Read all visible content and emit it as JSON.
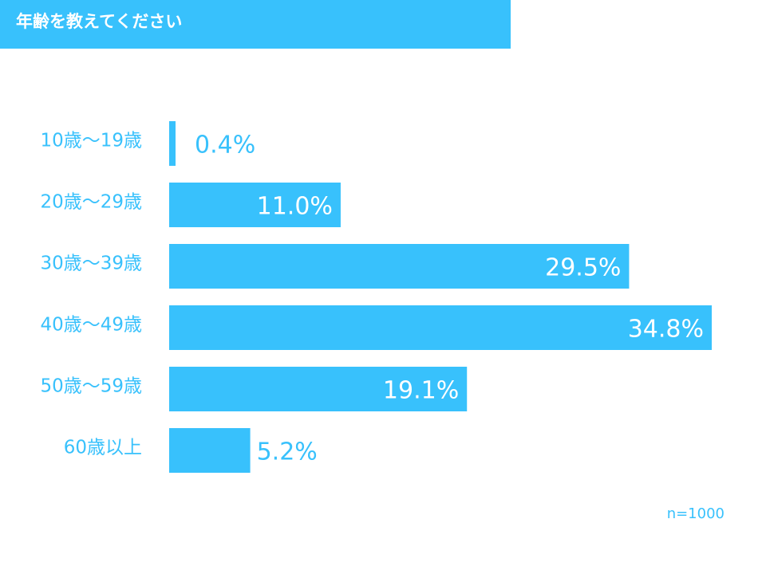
{
  "title": "年齢を教えてください",
  "note": "n=1000",
  "colors": {
    "bar": "#38c1fc",
    "label": "#38c1fc",
    "value_inside": "#ffffff",
    "value_outside": "#38c1fc",
    "background": "#ffffff"
  },
  "chart_data": {
    "type": "bar",
    "orientation": "horizontal",
    "categories": [
      "10歳～19歳",
      "20歳～29歳",
      "30歳～39歳",
      "40歳～49歳",
      "50歳～59歳",
      "60歳以上"
    ],
    "values": [
      0.4,
      11.0,
      29.5,
      34.8,
      19.1,
      5.2
    ],
    "value_labels": [
      "0.4%",
      "11.0%",
      "29.5%",
      "34.8%",
      "19.1%",
      "5.2%"
    ],
    "unit": "%",
    "title": "年齢を教えてください",
    "xlabel": "",
    "ylabel": "",
    "grid": false,
    "legend": "none"
  }
}
